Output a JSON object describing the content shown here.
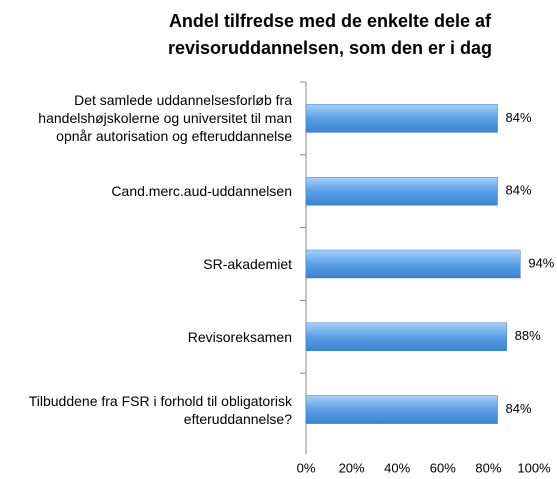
{
  "chart_data": {
    "type": "bar",
    "orientation": "horizontal",
    "title": "Andel tilfredse med de enkelte dele af revisoruddannelsen, som den er i dag",
    "categories": [
      "Det samlede uddannelsesforløb fra handelshøjskolerne og universitet til man opnår autorisation og efteruddannelse",
      "Cand.merc.aud-uddannelsen",
      "SR-akademiet",
      "Revisoreksamen",
      "Tilbuddene fra FSR i forhold til obligatorisk efteruddannelse?"
    ],
    "values": [
      84,
      84,
      94,
      88,
      84
    ],
    "value_labels": [
      "84%",
      "84%",
      "94%",
      "88%",
      "84%"
    ],
    "color": "#5aa0e6",
    "xlim": [
      0,
      100
    ],
    "xticks": [
      {
        "value": 0,
        "label": "0%"
      },
      {
        "value": 20,
        "label": "20%"
      },
      {
        "value": 40,
        "label": "40%"
      },
      {
        "value": 60,
        "label": "60%"
      },
      {
        "value": 80,
        "label": "80%"
      },
      {
        "value": 100,
        "label": "100%"
      }
    ],
    "grid": false
  }
}
